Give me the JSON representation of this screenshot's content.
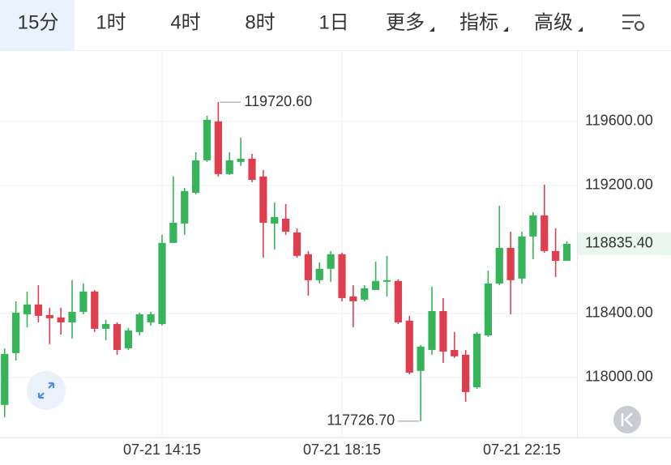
{
  "tabs": [
    "15分",
    "1时",
    "4时",
    "8时",
    "1日",
    "更多",
    "指标",
    "高级"
  ],
  "active_tab": 0,
  "active_color": "#2d7be5",
  "chart_data": {
    "type": "candlestick",
    "categories": [
      null,
      null,
      null,
      null,
      null,
      null,
      null,
      null,
      null,
      null,
      null,
      null,
      null,
      null,
      "07-21 14:15",
      null,
      null,
      null,
      null,
      null,
      null,
      null,
      null,
      null,
      null,
      null,
      null,
      null,
      null,
      null,
      "07-21 18:15",
      null,
      null,
      null,
      null,
      null,
      null,
      null,
      null,
      null,
      null,
      null,
      null,
      null,
      null,
      null,
      "07-21 22:15",
      null,
      null,
      null,
      null
    ],
    "open": [
      117828,
      118152,
      118395,
      118456,
      118390,
      118375,
      118344,
      118410,
      118537,
      118304,
      118334,
      118182,
      118284,
      118344,
      118334,
      118841,
      118962,
      119154,
      119357,
      119600,
      119271,
      119347,
      119367,
      119256,
      118962,
      118992,
      118906,
      118770,
      118608,
      118679,
      118770,
      118506,
      118486,
      118547,
      118598,
      118603,
      118355,
      118041,
      118172,
      118415,
      118172,
      118142,
      117939,
      118263,
      118587,
      118810,
      118618,
      118881,
      119013,
      118790,
      118729
    ],
    "high": [
      118182,
      118476,
      118537,
      118577,
      118436,
      118436,
      118608,
      118587,
      118547,
      118360,
      118344,
      118309,
      118405,
      118410,
      118891,
      119256,
      119185,
      119408,
      119635,
      119720.6,
      119408,
      119499,
      119397,
      119296,
      119094,
      119084,
      118932,
      118790,
      118719,
      118790,
      118780,
      118577,
      118577,
      118724,
      118760,
      118613,
      118385,
      118203,
      118567,
      118496,
      118284,
      118172,
      118284,
      118668,
      119073,
      118911,
      118911,
      119033,
      119205,
      118932,
      118851
    ],
    "low": [
      117752,
      118106,
      118314,
      118344,
      118208,
      118268,
      118243,
      118395,
      118284,
      118233,
      118142,
      118172,
      118263,
      118324,
      118324,
      118841,
      118891,
      119144,
      119347,
      119256,
      119266,
      119322,
      119220,
      118749,
      118800,
      118891,
      118749,
      118511,
      118587,
      118598,
      118476,
      118314,
      118476,
      118547,
      118506,
      118334,
      118020,
      117726.7,
      118142,
      118091,
      118122,
      117848,
      117929,
      118253,
      118577,
      118395,
      118587,
      118739,
      118780,
      118628,
      118729
    ],
    "close": [
      118147,
      118405,
      118456,
      118385,
      118370,
      118344,
      118410,
      118537,
      118304,
      118334,
      118172,
      118294,
      118395,
      118395,
      118841,
      118967,
      119165,
      119357,
      119610,
      119271,
      119357,
      119367,
      119235,
      118967,
      119003,
      118911,
      118760,
      118608,
      118679,
      118770,
      118496,
      118476,
      118557,
      118603,
      118608,
      118344,
      118030,
      118193,
      118415,
      118162,
      118132,
      117909,
      118273,
      118587,
      118810,
      118608,
      118881,
      119013,
      118790,
      118729,
      118835.4
    ],
    "up_color": "#36b45a",
    "down_color": "#e03e4e",
    "high_label": {
      "value": 119720.6,
      "label": "119720.60"
    },
    "low_label": {
      "value": 117726.7,
      "label": "117726.70"
    },
    "last_price": {
      "value": 118835.4,
      "label": "118835.40"
    },
    "ylim": [
      117625,
      120045
    ],
    "yticks": [
      {
        "value": 118000,
        "label": "118000.00"
      },
      {
        "value": 118400,
        "label": "118400.00"
      },
      {
        "value": 119200,
        "label": "119200.00"
      },
      {
        "value": 119600,
        "label": "119600.00"
      }
    ],
    "grid": true
  }
}
